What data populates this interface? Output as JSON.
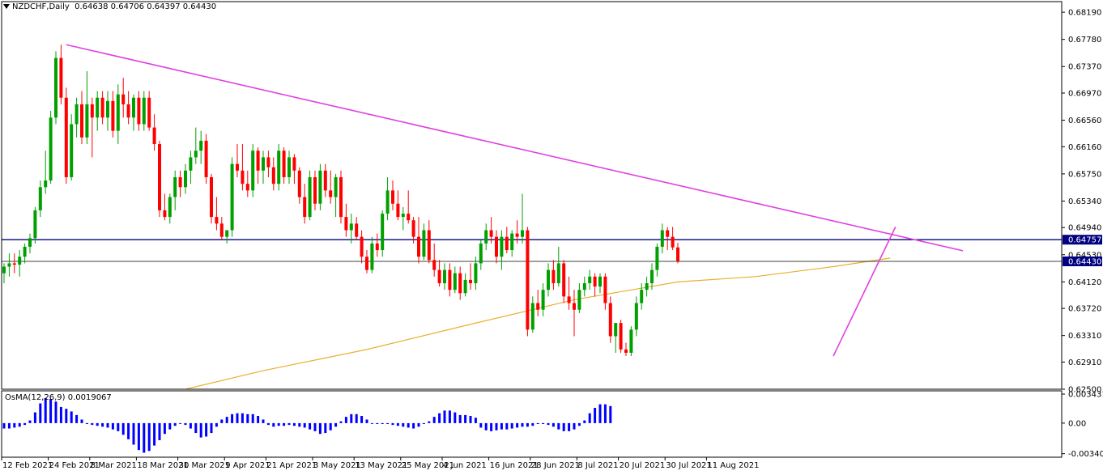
{
  "header": {
    "symbol_timeframe": "NZDCHF,Daily",
    "ohlc": "0.64638 0.64706 0.64397 0.64430"
  },
  "indicator": {
    "label": "OsMA(12,26,9) 0.0019067"
  },
  "price_labels": {
    "resistance_line": "0.64757",
    "current_price": "0.64430"
  },
  "colors": {
    "bull": "#00a000",
    "bear": "#ff0000",
    "trendline": "#e040e0",
    "moving_average": "#e8b030",
    "horizontal_line": "#000080",
    "osma_bars": "#0000ff",
    "label_bg": "#000080"
  },
  "chart_data": [
    {
      "type": "candlestick",
      "title": "NZDCHF,Daily",
      "ylim": [
        0.625,
        0.6835
      ],
      "y_ticks": [
        "0.68190",
        "0.67780",
        "0.67370",
        "0.66970",
        "0.66560",
        "0.66160",
        "0.65750",
        "0.65340",
        "0.64940",
        "0.64530",
        "0.64120",
        "0.63720",
        "0.63310",
        "0.62910",
        "0.62500"
      ],
      "x_ticks": [
        "12 Feb 2021",
        "24 Feb 2021",
        "8 Mar 2021",
        "18 Mar 2021",
        "30 Mar 2021",
        "9 Apr 2021",
        "21 Apr 2021",
        "3 May 2021",
        "13 May 2021",
        "25 May 2021",
        "4 Jun 2021",
        "16 Jun 2021",
        "28 Jun 2021",
        "8 Jul 2021",
        "20 Jul 2021",
        "30 Jul 2021",
        "11 Aug 2021"
      ],
      "grid": false,
      "horizontal_lines": [
        0.64757,
        0.6443
      ],
      "trendlines": [
        {
          "from": {
            "bar": 12,
            "price": 0.677
          },
          "to": {
            "bar": 185,
            "price": 0.6459
          }
        },
        {
          "from": {
            "bar": 160,
            "price": 0.63
          },
          "to": {
            "bar": 172,
            "price": 0.6495
          }
        }
      ],
      "moving_average": [
        {
          "bar": 35,
          "value": 0.625
        },
        {
          "bar": 50,
          "value": 0.6278
        },
        {
          "bar": 70,
          "value": 0.631
        },
        {
          "bar": 90,
          "value": 0.6348
        },
        {
          "bar": 110,
          "value": 0.6385
        },
        {
          "bar": 130,
          "value": 0.6412
        },
        {
          "bar": 145,
          "value": 0.642
        },
        {
          "bar": 160,
          "value": 0.6435
        },
        {
          "bar": 171,
          "value": 0.6448
        }
      ],
      "bars": [
        [
          0.6425,
          0.644,
          0.641,
          0.6435
        ],
        [
          0.6435,
          0.6455,
          0.642,
          0.644
        ],
        [
          0.644,
          0.6455,
          0.6425,
          0.6438
        ],
        [
          0.6438,
          0.646,
          0.642,
          0.645
        ],
        [
          0.645,
          0.647,
          0.644,
          0.6465
        ],
        [
          0.6465,
          0.6485,
          0.6455,
          0.6478
        ],
        [
          0.6478,
          0.6525,
          0.647,
          0.652
        ],
        [
          0.652,
          0.6565,
          0.651,
          0.6555
        ],
        [
          0.6555,
          0.661,
          0.6545,
          0.6565
        ],
        [
          0.6565,
          0.667,
          0.656,
          0.666
        ],
        [
          0.666,
          0.676,
          0.665,
          0.675
        ],
        [
          0.675,
          0.677,
          0.668,
          0.669
        ],
        [
          0.669,
          0.6705,
          0.656,
          0.657
        ],
        [
          0.657,
          0.6665,
          0.6565,
          0.665
        ],
        [
          0.665,
          0.669,
          0.663,
          0.668
        ],
        [
          0.668,
          0.67,
          0.662,
          0.663
        ],
        [
          0.663,
          0.673,
          0.662,
          0.668
        ],
        [
          0.668,
          0.669,
          0.66,
          0.666
        ],
        [
          0.666,
          0.67,
          0.664,
          0.669
        ],
        [
          0.669,
          0.67,
          0.665,
          0.666
        ],
        [
          0.666,
          0.67,
          0.664,
          0.6685
        ],
        [
          0.6685,
          0.67,
          0.663,
          0.664
        ],
        [
          0.664,
          0.671,
          0.662,
          0.6695
        ],
        [
          0.6695,
          0.672,
          0.666,
          0.668
        ],
        [
          0.668,
          0.67,
          0.665,
          0.666
        ],
        [
          0.666,
          0.6695,
          0.664,
          0.669
        ],
        [
          0.669,
          0.67,
          0.664,
          0.665
        ],
        [
          0.665,
          0.67,
          0.664,
          0.669
        ],
        [
          0.669,
          0.67,
          0.664,
          0.6645
        ],
        [
          0.6645,
          0.6665,
          0.661,
          0.662
        ],
        [
          0.662,
          0.6625,
          0.651,
          0.652
        ],
        [
          0.652,
          0.6545,
          0.6505,
          0.651
        ],
        [
          0.651,
          0.6545,
          0.65,
          0.654
        ],
        [
          0.654,
          0.658,
          0.652,
          0.657
        ],
        [
          0.657,
          0.658,
          0.654,
          0.6555
        ],
        [
          0.6555,
          0.659,
          0.6545,
          0.658
        ],
        [
          0.658,
          0.661,
          0.656,
          0.66
        ],
        [
          0.66,
          0.6645,
          0.659,
          0.661
        ],
        [
          0.661,
          0.664,
          0.659,
          0.6625
        ],
        [
          0.6625,
          0.6635,
          0.656,
          0.657
        ],
        [
          0.657,
          0.6575,
          0.65,
          0.651
        ],
        [
          0.651,
          0.654,
          0.649,
          0.65
        ],
        [
          0.65,
          0.651,
          0.6475,
          0.648
        ],
        [
          0.648,
          0.649,
          0.647,
          0.649
        ],
        [
          0.649,
          0.66,
          0.648,
          0.659
        ],
        [
          0.659,
          0.662,
          0.657,
          0.658
        ],
        [
          0.658,
          0.662,
          0.655,
          0.656
        ],
        [
          0.656,
          0.658,
          0.654,
          0.655
        ],
        [
          0.655,
          0.662,
          0.654,
          0.661
        ],
        [
          0.661,
          0.6615,
          0.656,
          0.658
        ],
        [
          0.658,
          0.661,
          0.656,
          0.66
        ],
        [
          0.66,
          0.661,
          0.657,
          0.6585
        ],
        [
          0.6585,
          0.66,
          0.655,
          0.656
        ],
        [
          0.656,
          0.662,
          0.655,
          0.661
        ],
        [
          0.661,
          0.6615,
          0.656,
          0.657
        ],
        [
          0.657,
          0.661,
          0.656,
          0.66
        ],
        [
          0.66,
          0.6605,
          0.656,
          0.658
        ],
        [
          0.658,
          0.6585,
          0.653,
          0.654
        ],
        [
          0.654,
          0.656,
          0.65,
          0.651
        ],
        [
          0.651,
          0.658,
          0.6505,
          0.657
        ],
        [
          0.657,
          0.658,
          0.652,
          0.653
        ],
        [
          0.653,
          0.659,
          0.652,
          0.658
        ],
        [
          0.658,
          0.659,
          0.654,
          0.655
        ],
        [
          0.655,
          0.658,
          0.653,
          0.654
        ],
        [
          0.654,
          0.6575,
          0.651,
          0.657
        ],
        [
          0.657,
          0.658,
          0.65,
          0.651
        ],
        [
          0.651,
          0.653,
          0.648,
          0.649
        ],
        [
          0.649,
          0.6515,
          0.647,
          0.65
        ],
        [
          0.65,
          0.651,
          0.6475,
          0.648
        ],
        [
          0.648,
          0.649,
          0.644,
          0.645
        ],
        [
          0.645,
          0.646,
          0.6425,
          0.643
        ],
        [
          0.643,
          0.648,
          0.6425,
          0.647
        ],
        [
          0.647,
          0.6485,
          0.645,
          0.646
        ],
        [
          0.646,
          0.652,
          0.645,
          0.6515
        ],
        [
          0.6515,
          0.657,
          0.6505,
          0.655
        ],
        [
          0.655,
          0.6565,
          0.652,
          0.653
        ],
        [
          0.653,
          0.655,
          0.6505,
          0.651
        ],
        [
          0.651,
          0.6525,
          0.649,
          0.6515
        ],
        [
          0.6515,
          0.655,
          0.65,
          0.6505
        ],
        [
          0.6505,
          0.651,
          0.647,
          0.648
        ],
        [
          0.648,
          0.651,
          0.644,
          0.645
        ],
        [
          0.645,
          0.65,
          0.6445,
          0.649
        ],
        [
          0.649,
          0.6505,
          0.644,
          0.6445
        ],
        [
          0.6445,
          0.647,
          0.642,
          0.643
        ],
        [
          0.643,
          0.6445,
          0.6405,
          0.641
        ],
        [
          0.641,
          0.644,
          0.64,
          0.643
        ],
        [
          0.643,
          0.644,
          0.639,
          0.64
        ],
        [
          0.64,
          0.6435,
          0.6395,
          0.6425
        ],
        [
          0.6425,
          0.6435,
          0.6385,
          0.6395
        ],
        [
          0.6395,
          0.6425,
          0.639,
          0.6415
        ],
        [
          0.6415,
          0.644,
          0.64,
          0.641
        ],
        [
          0.641,
          0.645,
          0.64,
          0.644
        ],
        [
          0.644,
          0.6475,
          0.643,
          0.647
        ],
        [
          0.647,
          0.65,
          0.646,
          0.649
        ],
        [
          0.649,
          0.651,
          0.647,
          0.648
        ],
        [
          0.648,
          0.649,
          0.644,
          0.645
        ],
        [
          0.645,
          0.649,
          0.643,
          0.648
        ],
        [
          0.648,
          0.6495,
          0.6455,
          0.646
        ],
        [
          0.646,
          0.649,
          0.645,
          0.6485
        ],
        [
          0.6485,
          0.6505,
          0.647,
          0.648
        ],
        [
          0.648,
          0.6545,
          0.647,
          0.649
        ],
        [
          0.649,
          0.6495,
          0.633,
          0.634
        ],
        [
          0.634,
          0.639,
          0.6335,
          0.638
        ],
        [
          0.638,
          0.64,
          0.636,
          0.637
        ],
        [
          0.637,
          0.641,
          0.636,
          0.64
        ],
        [
          0.64,
          0.644,
          0.639,
          0.643
        ],
        [
          0.643,
          0.6445,
          0.64,
          0.641
        ],
        [
          0.641,
          0.6465,
          0.6405,
          0.644
        ],
        [
          0.644,
          0.6445,
          0.638,
          0.639
        ],
        [
          0.639,
          0.642,
          0.637,
          0.638
        ],
        [
          0.638,
          0.64,
          0.633,
          0.637
        ],
        [
          0.637,
          0.641,
          0.6365,
          0.64
        ],
        [
          0.64,
          0.642,
          0.639,
          0.641
        ],
        [
          0.641,
          0.643,
          0.64,
          0.642
        ],
        [
          0.642,
          0.6425,
          0.639,
          0.6405
        ],
        [
          0.6405,
          0.6425,
          0.6395,
          0.642
        ],
        [
          0.642,
          0.6425,
          0.637,
          0.638
        ],
        [
          0.638,
          0.639,
          0.632,
          0.633
        ],
        [
          0.633,
          0.6345,
          0.6305,
          0.635
        ],
        [
          0.635,
          0.6355,
          0.6305,
          0.631
        ],
        [
          0.631,
          0.632,
          0.63,
          0.6305
        ],
        [
          0.6305,
          0.6345,
          0.63,
          0.634
        ],
        [
          0.634,
          0.639,
          0.633,
          0.638
        ],
        [
          0.638,
          0.641,
          0.637,
          0.64
        ],
        [
          0.64,
          0.642,
          0.639,
          0.641
        ],
        [
          0.641,
          0.644,
          0.64,
          0.643
        ],
        [
          0.643,
          0.647,
          0.642,
          0.6465
        ],
        [
          0.6465,
          0.65,
          0.6455,
          0.649
        ],
        [
          0.649,
          0.6495,
          0.646,
          0.648
        ],
        [
          0.648,
          0.6495,
          0.646,
          0.6464
        ],
        [
          0.6464,
          0.6471,
          0.644,
          0.6443
        ]
      ]
    },
    {
      "type": "bar",
      "title": "OsMA(12,26,9) 0.0019067",
      "ylim": [
        -0.0038,
        0.0036
      ],
      "y_ticks": [
        "0.0034311",
        "0.00",
        "-0.0034094"
      ],
      "values": [
        -0.0006,
        -0.0006,
        -0.0005,
        -0.0004,
        -0.0002,
        0.0003,
        0.0012,
        0.0022,
        0.0028,
        0.0027,
        0.0024,
        0.0018,
        0.0016,
        0.0013,
        0.0009,
        0.0004,
        -0.0001,
        -0.0002,
        -0.0003,
        -0.0004,
        -0.0005,
        -0.0007,
        -0.0009,
        -0.0013,
        -0.0018,
        -0.0024,
        -0.003,
        -0.0033,
        -0.0031,
        -0.0025,
        -0.0019,
        -0.0012,
        -0.0007,
        -0.0003,
        0.0,
        -0.0002,
        -0.0006,
        -0.0011,
        -0.0016,
        -0.0015,
        -0.0011,
        -0.0004,
        0.0004,
        0.0007,
        0.001,
        0.0011,
        0.0011,
        0.001,
        0.001,
        0.0008,
        0.0004,
        -0.0002,
        -0.0004,
        -0.0003,
        -0.0003,
        -0.0002,
        -0.0003,
        -0.0004,
        -0.0005,
        -0.0007,
        -0.0009,
        -0.0012,
        -0.0011,
        -0.0008,
        -0.0004,
        0.0002,
        0.0007,
        0.001,
        0.001,
        0.0008,
        0.0004,
        0.0,
        -0.0001,
        -0.0001,
        -0.0001,
        -0.0002,
        -0.0003,
        -0.0004,
        -0.0005,
        -0.0006,
        -0.0004,
        -0.0001,
        0.0002,
        0.0007,
        0.0011,
        0.0014,
        0.0014,
        0.0012,
        0.0009,
        0.0009,
        0.0008,
        0.0006,
        -0.0005,
        -0.0008,
        -0.0009,
        -0.0008,
        -0.0007,
        -0.0007,
        -0.0006,
        -0.0005,
        -0.0004,
        -0.0004,
        -0.0003,
        -0.0001,
        -0.0001,
        -0.0002,
        -0.0004,
        -0.0007,
        -0.0009,
        -0.0009,
        -0.0007,
        -0.0003,
        0.0003,
        0.0011,
        0.0017,
        0.0021,
        0.0021,
        0.0019
      ]
    }
  ]
}
